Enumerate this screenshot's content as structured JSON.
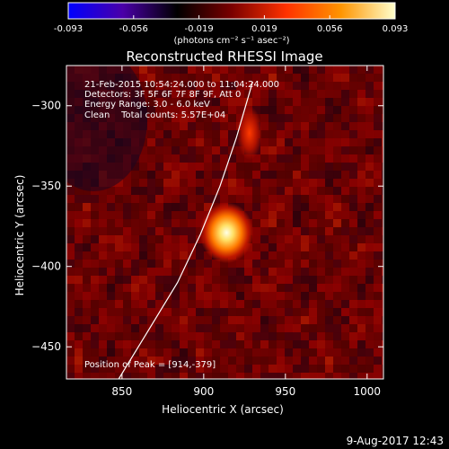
{
  "chart_data": {
    "type": "heatmap",
    "title": "Reconstructed RHESSI Image",
    "xlabel": "Heliocentric X (arcsec)",
    "ylabel": "Heliocentric Y (arcsec)",
    "xlim": [
      816,
      1010
    ],
    "ylim": [
      -470,
      -275
    ],
    "x_ticks": [
      850,
      900,
      950,
      1000
    ],
    "y_ticks": [
      -300,
      -350,
      -400,
      -450
    ],
    "colorbar": {
      "range": [
        -0.093,
        0.093
      ],
      "ticks": [
        "-0.093",
        "-0.056",
        "-0.019",
        "0.019",
        "0.056",
        "0.093"
      ],
      "unit_label": "(photons cm⁻² s⁻¹ asec⁻²)",
      "colors": [
        "#0000ff",
        "#4a00a8",
        "#000000",
        "#7a0000",
        "#ff3200",
        "#ff9400",
        "#ffffcc"
      ]
    },
    "peak": {
      "x": 914,
      "y": -379
    },
    "sources": [
      {
        "x": 914,
        "y": -379,
        "value": 0.093
      },
      {
        "x": 928,
        "y": -317,
        "value": 0.045
      }
    ],
    "limb_curve": [
      [
        848,
        -470
      ],
      [
        866,
        -440
      ],
      [
        884,
        -410
      ],
      [
        898,
        -380
      ],
      [
        910,
        -350
      ],
      [
        920,
        -320
      ],
      [
        930,
        -285
      ]
    ],
    "annotations": [
      "21-Feb-2015 10:54:24.000 to 11:04:24.000",
      "Detectors: 3F 5F 6F 7F 8F 9F, Att 0",
      "Energy Range: 3.0 - 6.0 keV",
      "Clean    Total counts: 5.57E+04",
      "Position of Peak = [914,-379]"
    ],
    "timestamp": "9-Aug-2017 12:43"
  }
}
